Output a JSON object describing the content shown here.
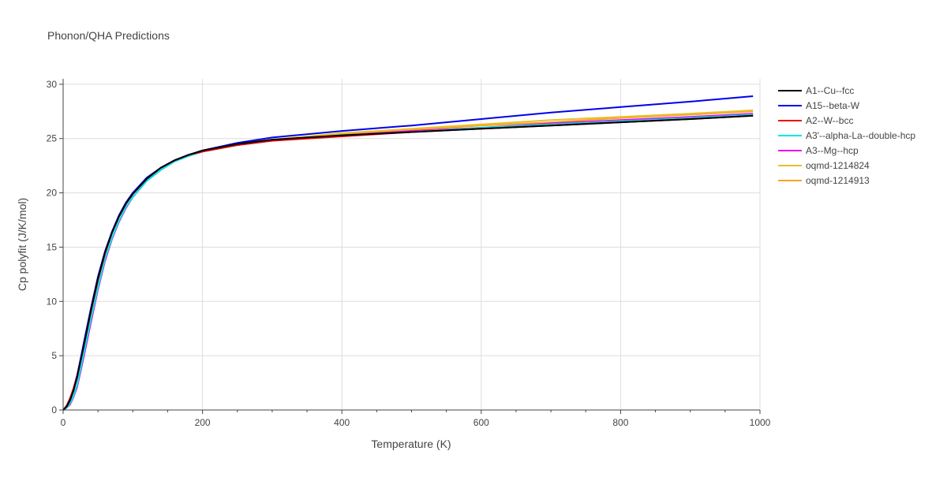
{
  "chart_data": {
    "type": "line",
    "title": "Phonon/QHA Predictions",
    "xlabel": "Temperature (K)",
    "ylabel": "Cp polyfit (J/K/mol)",
    "xlim": [
      0,
      1000
    ],
    "ylim": [
      0,
      30.5
    ],
    "xticks": [
      0,
      200,
      400,
      600,
      800,
      1000
    ],
    "yticks": [
      0,
      5,
      10,
      15,
      20,
      25,
      30
    ],
    "grid": true,
    "legend_position": "top-right, outside plot",
    "x": [
      0,
      5,
      10,
      15,
      20,
      30,
      40,
      50,
      60,
      70,
      80,
      90,
      100,
      120,
      140,
      160,
      180,
      200,
      250,
      300,
      400,
      500,
      600,
      700,
      800,
      900,
      990
    ],
    "series": [
      {
        "name": "A1--Cu--fcc",
        "color": "#000000",
        "values": [
          0,
          0.3,
          0.9,
          1.8,
          3.0,
          6.0,
          9.2,
          12.1,
          14.5,
          16.3,
          17.8,
          19.0,
          19.9,
          21.3,
          22.3,
          23.0,
          23.5,
          23.9,
          24.5,
          24.9,
          25.3,
          25.6,
          25.9,
          26.2,
          26.5,
          26.8,
          27.1
        ]
      },
      {
        "name": "A15--beta-W",
        "color": "#0000ee",
        "values": [
          0,
          0.3,
          0.9,
          1.8,
          3.1,
          6.3,
          9.4,
          12.3,
          14.6,
          16.4,
          17.9,
          19.1,
          20.0,
          21.4,
          22.3,
          23.0,
          23.5,
          23.9,
          24.6,
          25.1,
          25.7,
          26.2,
          26.8,
          27.4,
          27.9,
          28.4,
          28.9
        ]
      },
      {
        "name": "A2--W--bcc",
        "color": "#ee0000",
        "values": [
          0,
          0.4,
          1.1,
          2.0,
          3.2,
          6.1,
          9.1,
          12.0,
          14.4,
          16.3,
          17.8,
          19.0,
          19.9,
          21.3,
          22.3,
          23.0,
          23.5,
          23.8,
          24.4,
          24.8,
          25.2,
          25.6,
          25.9,
          26.2,
          26.5,
          26.8,
          27.1
        ]
      },
      {
        "name": "A3'--alpha-La--double-hcp",
        "color": "#00e5e5",
        "values": [
          0,
          0.2,
          0.6,
          1.3,
          2.3,
          5.3,
          8.4,
          11.3,
          13.9,
          15.8,
          17.4,
          18.7,
          19.6,
          21.1,
          22.1,
          22.9,
          23.4,
          23.8,
          24.4,
          24.8,
          25.3,
          25.6,
          26.0,
          26.3,
          26.6,
          26.9,
          27.2
        ]
      },
      {
        "name": "A3--Mg--hcp",
        "color": "#ee00ee",
        "values": [
          0,
          0.2,
          0.5,
          1.2,
          2.1,
          5.0,
          8.1,
          11.1,
          13.7,
          15.7,
          17.3,
          18.6,
          19.6,
          21.1,
          22.1,
          22.9,
          23.4,
          23.8,
          24.4,
          24.8,
          25.3,
          25.7,
          26.0,
          26.4,
          26.7,
          27.0,
          27.3
        ]
      },
      {
        "name": "oqmd-1214824",
        "color": "#e6c02e",
        "values": [
          0,
          0.3,
          0.9,
          1.8,
          3.0,
          6.0,
          9.1,
          12.0,
          14.4,
          16.3,
          17.8,
          19.0,
          19.9,
          21.3,
          22.3,
          23.0,
          23.5,
          23.9,
          24.5,
          24.9,
          25.5,
          25.9,
          26.3,
          26.7,
          27.0,
          27.3,
          27.6
        ]
      },
      {
        "name": "oqmd-1214913",
        "color": "#f5a623",
        "values": [
          0,
          0.3,
          0.9,
          1.8,
          3.0,
          6.0,
          9.1,
          12.0,
          14.4,
          16.3,
          17.8,
          19.0,
          19.9,
          21.3,
          22.3,
          23.0,
          23.5,
          23.9,
          24.5,
          24.9,
          25.4,
          25.8,
          26.2,
          26.5,
          26.9,
          27.2,
          27.5
        ]
      }
    ]
  }
}
